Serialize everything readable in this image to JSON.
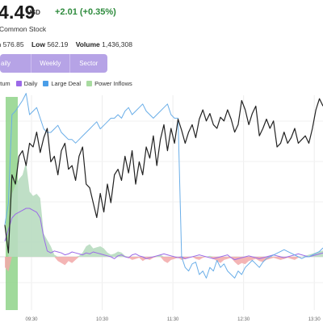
{
  "quote": {
    "price": "4.49",
    "currency": "USD",
    "change": "+2.01 (+0.35%)",
    "name": "Common Stock",
    "high_label": "h",
    "high_value": "576.85",
    "low_label": "Low",
    "low_value": "562.19",
    "volume_label": "Volume",
    "volume_value": "1,436,308"
  },
  "tabs": [
    {
      "label": "aily"
    },
    {
      "label": "Weekly"
    },
    {
      "label": "Sector"
    }
  ],
  "legend": [
    {
      "label": "ntum",
      "color": "#e0202a"
    },
    {
      "label": "Daily",
      "color": "#9b6ae8"
    },
    {
      "label": "Large Deal",
      "color": "#4a9ee8"
    },
    {
      "label": "Power Inflows",
      "color": "#a8dba0"
    }
  ],
  "colors": {
    "accent": "#b6a3e6",
    "positive": "#2e8b3d",
    "price_line": "#222222",
    "large_deal_line": "#6aaee8",
    "daily_line": "#9b6ae8",
    "inflow_fill": "#b8dcc0",
    "outflow_fill": "#f2a8a8",
    "green_bar": "#8fd48a"
  },
  "chart_data": {
    "type": "line",
    "title": "",
    "xlabel": "",
    "ylabel": "",
    "x_ticks": [
      "09:30",
      "10:30",
      "11:30",
      "12:30",
      "13:30"
    ],
    "series": [
      {
        "name": "Price",
        "x": [
          0,
          3,
          6,
          9,
          12,
          15,
          18,
          21,
          24,
          27,
          30,
          33,
          36,
          39,
          42,
          45,
          48,
          51,
          54,
          57,
          60,
          63,
          66,
          69,
          72,
          75,
          78,
          81,
          84,
          87,
          90,
          93,
          96,
          99,
          102,
          105,
          108,
          111,
          114,
          117,
          120,
          123,
          126,
          129,
          132,
          135,
          138,
          141,
          144,
          147,
          150,
          153,
          156,
          159,
          162,
          165,
          168,
          171,
          174,
          177,
          180,
          183,
          186,
          189,
          192,
          195,
          198,
          201,
          204,
          207,
          210,
          213,
          216,
          219,
          222,
          225,
          228,
          231,
          234,
          237,
          240,
          243,
          246,
          249,
          252,
          255,
          258,
          261,
          264,
          267,
          270
        ],
        "values": [
          18,
          3,
          45,
          40,
          55,
          58,
          50,
          62,
          60,
          68,
          57,
          65,
          70,
          52,
          55,
          45,
          58,
          62,
          48,
          50,
          42,
          55,
          60,
          40,
          38,
          30,
          22,
          35,
          25,
          40,
          30,
          45,
          48,
          42,
          55,
          46,
          58,
          40,
          52,
          45,
          60,
          54,
          66,
          50,
          64,
          72,
          58,
          70,
          62,
          75,
          69,
          62,
          68,
          72,
          65,
          75,
          80,
          74,
          78,
          72,
          70,
          76,
          74,
          80,
          75,
          68,
          72,
          85,
          80,
          72,
          78,
          82,
          66,
          70,
          75,
          70,
          74,
          60,
          62,
          68,
          62,
          65,
          70,
          62,
          64,
          66,
          62,
          70,
          80,
          86,
          82
        ]
      },
      {
        "name": "Large Deal",
        "x": [
          0,
          3,
          6,
          9,
          12,
          15,
          18,
          21,
          24,
          27,
          30,
          33,
          36,
          39,
          42,
          45,
          48,
          51,
          54,
          57,
          60,
          63,
          66,
          69,
          72,
          75,
          78,
          81,
          84,
          87,
          90,
          93,
          96,
          99,
          102,
          105,
          108,
          111,
          114,
          117,
          120,
          123,
          126,
          129,
          132,
          135,
          138,
          141,
          144,
          147,
          150,
          153,
          156,
          159,
          162,
          165,
          168,
          171,
          174,
          177,
          180,
          183,
          186,
          189,
          192,
          195,
          198,
          201,
          204,
          207,
          210,
          213,
          216,
          219,
          222,
          225,
          228,
          231,
          234,
          237,
          240,
          243,
          246,
          249,
          252,
          255,
          258,
          261,
          264,
          267,
          270
        ],
        "values": [
          18,
          30,
          80,
          82,
          85,
          88,
          92,
          80,
          82,
          84,
          78,
          72,
          70,
          70,
          72,
          74,
          70,
          68,
          66,
          66,
          64,
          66,
          68,
          70,
          72,
          74,
          76,
          72,
          74,
          76,
          78,
          78,
          80,
          78,
          82,
          84,
          80,
          82,
          84,
          86,
          82,
          80,
          78,
          80,
          82,
          84,
          86,
          80,
          78,
          78,
          0,
          -6,
          -8,
          -4,
          -3,
          -10,
          -8,
          -12,
          -6,
          -8,
          -2,
          -6,
          -4,
          -8,
          -10,
          -12,
          -8,
          -10,
          -6,
          -4,
          -2,
          -4,
          -6,
          -3,
          -1,
          0,
          1,
          2,
          3,
          4,
          3,
          2,
          1,
          0,
          -1,
          0,
          0,
          1,
          2,
          3,
          5
        ]
      },
      {
        "name": "Daily",
        "x": [
          0,
          3,
          6,
          9,
          12,
          15,
          18,
          21,
          24,
          27,
          30,
          33,
          36,
          39,
          42,
          45,
          48,
          51,
          54,
          57,
          60,
          63,
          66,
          69,
          72,
          75,
          78,
          81,
          84,
          87,
          90,
          93,
          96,
          99,
          102,
          105,
          108,
          111,
          114,
          117,
          120,
          123,
          126,
          129,
          132,
          135,
          138,
          141,
          144,
          147,
          150,
          153,
          156,
          159,
          162,
          165,
          168,
          171,
          174,
          177,
          180,
          183,
          186,
          189,
          192,
          195,
          198,
          201,
          204,
          207,
          210,
          213,
          216,
          219,
          222,
          225,
          228,
          231,
          234,
          237,
          240,
          243,
          246,
          249,
          252,
          255,
          258,
          261,
          264,
          267,
          270
        ],
        "values": [
          16,
          28,
          40,
          44,
          46,
          48,
          50,
          50,
          48,
          46,
          40,
          20,
          6,
          4,
          6,
          5,
          4,
          2,
          3,
          5,
          4,
          3,
          2,
          4,
          3,
          5,
          4,
          3,
          2,
          1,
          0,
          -2,
          1,
          2,
          0,
          -1,
          2,
          3,
          1,
          0,
          -2,
          -1,
          0,
          1,
          2,
          3,
          2,
          1,
          0,
          -1,
          0,
          -2,
          -1,
          0,
          1,
          2,
          1,
          0,
          -1,
          -2,
          -1,
          0,
          1,
          2,
          -1,
          -3,
          -2,
          -1,
          0,
          1,
          0,
          -1,
          -2,
          -1,
          0,
          1,
          2,
          1,
          0,
          -1,
          0,
          1,
          2,
          3,
          2,
          1,
          0,
          1,
          2,
          3,
          4
        ]
      },
      {
        "name": "Power Inflows",
        "x": [
          0,
          3,
          6,
          9,
          12,
          15,
          18,
          21,
          24,
          27,
          30,
          33,
          36,
          39,
          42,
          45,
          48,
          51,
          54,
          57,
          60,
          63,
          66,
          69,
          72,
          75,
          78,
          81,
          84,
          87,
          90,
          93,
          96,
          99,
          102,
          105,
          108,
          111,
          114,
          117,
          120,
          123,
          126,
          129,
          132,
          135,
          138,
          141,
          144,
          147,
          150,
          153,
          156,
          159,
          162,
          165,
          168,
          171,
          174,
          177,
          180,
          183,
          186,
          189,
          192,
          195,
          198,
          201,
          204,
          207,
          210,
          213,
          216,
          219,
          222,
          225,
          228,
          231,
          234,
          237,
          240,
          243,
          246,
          249,
          252,
          255,
          258,
          261,
          264,
          267,
          270
        ],
        "values": [
          -10,
          -14,
          60,
          68,
          74,
          78,
          90,
          62,
          58,
          60,
          56,
          22,
          16,
          10,
          2,
          -4,
          -6,
          -8,
          -4,
          -6,
          -3,
          1,
          4,
          10,
          12,
          8,
          9,
          10,
          8,
          4,
          2,
          3,
          5,
          4,
          1,
          -1,
          -3,
          -2,
          -1,
          -4,
          -2,
          -3,
          -1,
          1,
          2,
          -4,
          -6,
          -3,
          -2,
          -1,
          -3,
          -2,
          -1,
          0,
          -2,
          -3,
          -1,
          0,
          1,
          -2,
          -4,
          -6,
          -3,
          -2,
          -1,
          -5,
          -8,
          -6,
          -7,
          -4,
          -3,
          -2,
          -4,
          -5,
          -3,
          -2,
          -1,
          -2,
          -3,
          -2,
          -1,
          -2,
          -3,
          -1,
          0,
          1,
          2,
          3,
          4,
          5,
          6
        ]
      }
    ]
  }
}
